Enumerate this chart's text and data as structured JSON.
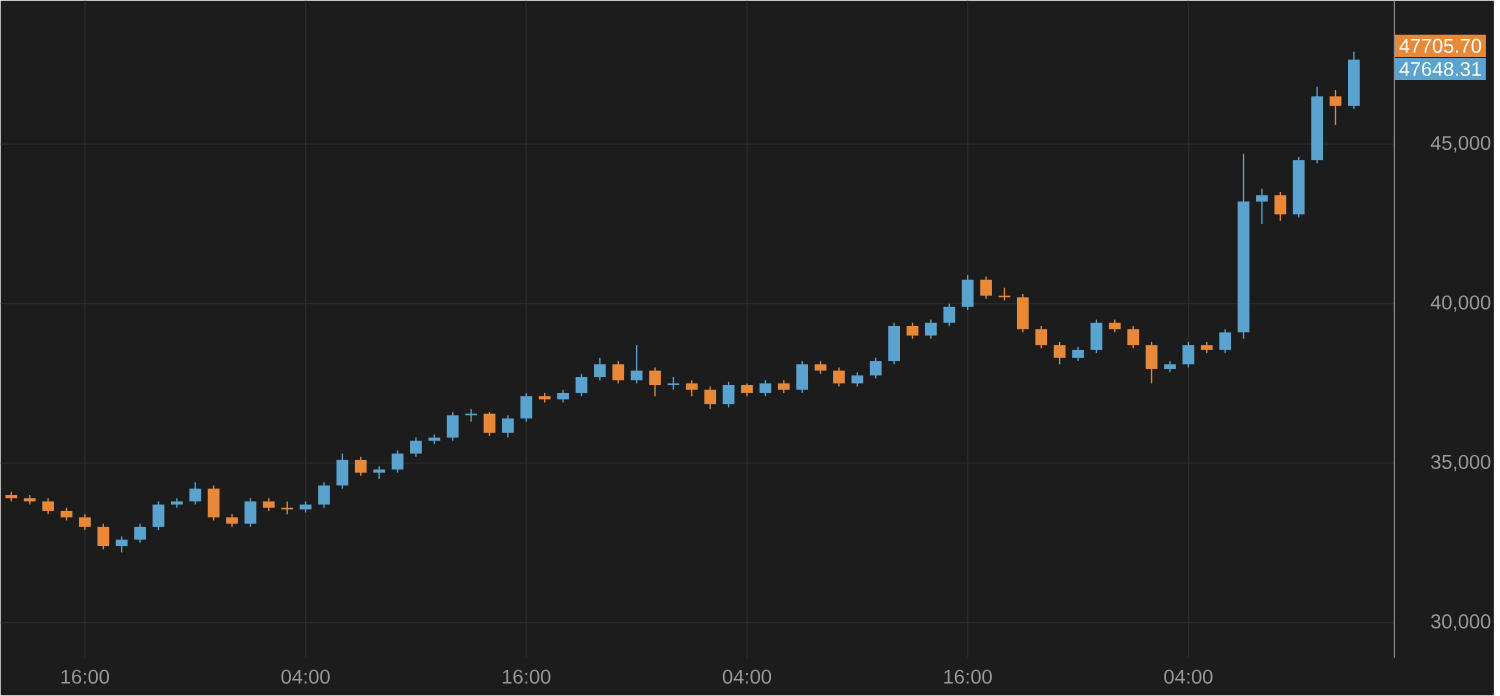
{
  "chart_data": {
    "type": "candlestick",
    "categories": [
      null,
      null,
      null,
      null,
      "16:00",
      null,
      null,
      null,
      null,
      null,
      null,
      null,
      null,
      null,
      null,
      null,
      "04:00",
      null,
      null,
      null,
      null,
      null,
      null,
      null,
      null,
      null,
      null,
      null,
      "16:00",
      null,
      null,
      null,
      null,
      null,
      null,
      null,
      null,
      null,
      null,
      null,
      "04:00",
      null,
      null,
      null,
      null,
      null,
      null,
      null,
      null,
      null,
      null,
      null,
      "16:00",
      null,
      null,
      null,
      null,
      null,
      null,
      null,
      null,
      null,
      null,
      null,
      "04:00",
      null,
      null,
      null,
      null,
      null,
      null,
      null,
      null,
      null
    ],
    "ohlc": [
      [
        34000,
        34100,
        33800,
        33900
      ],
      [
        33900,
        34000,
        33700,
        33800
      ],
      [
        33800,
        33900,
        33400,
        33500
      ],
      [
        33500,
        33600,
        33200,
        33300
      ],
      [
        33300,
        33400,
        32900,
        33000
      ],
      [
        33000,
        33100,
        32300,
        32400
      ],
      [
        32400,
        32700,
        32200,
        32600
      ],
      [
        32600,
        33100,
        32500,
        33000
      ],
      [
        33000,
        33800,
        32900,
        33700
      ],
      [
        33700,
        33900,
        33600,
        33800
      ],
      [
        33800,
        34400,
        33700,
        34200
      ],
      [
        34200,
        34300,
        33200,
        33300
      ],
      [
        33300,
        33400,
        33000,
        33100
      ],
      [
        33100,
        33900,
        33000,
        33800
      ],
      [
        33800,
        33900,
        33500,
        33600
      ],
      [
        33600,
        33800,
        33400,
        33550
      ],
      [
        33550,
        33800,
        33450,
        33700
      ],
      [
        33700,
        34400,
        33600,
        34300
      ],
      [
        34300,
        35300,
        34200,
        35100
      ],
      [
        35100,
        35200,
        34600,
        34700
      ],
      [
        34700,
        34900,
        34500,
        34800
      ],
      [
        34800,
        35400,
        34700,
        35300
      ],
      [
        35300,
        35800,
        35200,
        35700
      ],
      [
        35700,
        35900,
        35600,
        35800
      ],
      [
        35800,
        36600,
        35700,
        36500
      ],
      [
        36500,
        36700,
        36300,
        36550
      ],
      [
        36550,
        36600,
        35850,
        35950
      ],
      [
        35950,
        36500,
        35800,
        36400
      ],
      [
        36400,
        37200,
        36300,
        37100
      ],
      [
        37100,
        37200,
        36900,
        37000
      ],
      [
        37000,
        37300,
        36900,
        37200
      ],
      [
        37200,
        37800,
        37100,
        37700
      ],
      [
        37700,
        38300,
        37600,
        38100
      ],
      [
        38100,
        38200,
        37500,
        37600
      ],
      [
        37600,
        38700,
        37500,
        37900
      ],
      [
        37900,
        38000,
        37100,
        37450
      ],
      [
        37450,
        37700,
        37300,
        37500
      ],
      [
        37500,
        37600,
        37100,
        37300
      ],
      [
        37300,
        37400,
        36700,
        36850
      ],
      [
        36850,
        37550,
        36750,
        37450
      ],
      [
        37450,
        37500,
        37100,
        37200
      ],
      [
        37200,
        37600,
        37100,
        37500
      ],
      [
        37500,
        37600,
        37200,
        37300
      ],
      [
        37300,
        38200,
        37200,
        38100
      ],
      [
        38100,
        38200,
        37800,
        37900
      ],
      [
        37900,
        38000,
        37400,
        37500
      ],
      [
        37500,
        37850,
        37400,
        37750
      ],
      [
        37750,
        38300,
        37650,
        38200
      ],
      [
        38200,
        39400,
        38100,
        39300
      ],
      [
        39300,
        39400,
        38900,
        39000
      ],
      [
        39000,
        39500,
        38900,
        39400
      ],
      [
        39400,
        40000,
        39300,
        39900
      ],
      [
        39900,
        40900,
        39800,
        40750
      ],
      [
        40750,
        40850,
        40150,
        40250
      ],
      [
        40250,
        40500,
        40100,
        40200
      ],
      [
        40200,
        40300,
        39100,
        39200
      ],
      [
        39200,
        39300,
        38600,
        38700
      ],
      [
        38700,
        38800,
        38100,
        38300
      ],
      [
        38300,
        38650,
        38200,
        38550
      ],
      [
        38550,
        39500,
        38450,
        39400
      ],
      [
        39400,
        39500,
        39100,
        39200
      ],
      [
        39200,
        39300,
        38600,
        38700
      ],
      [
        38700,
        38800,
        37500,
        37950
      ],
      [
        37950,
        38200,
        37850,
        38100
      ],
      [
        38100,
        38800,
        38000,
        38700
      ],
      [
        38700,
        38800,
        38450,
        38550
      ],
      [
        38550,
        39200,
        38450,
        39100
      ],
      [
        39100,
        44700,
        38900,
        43200
      ],
      [
        43200,
        43600,
        42500,
        43400
      ],
      [
        43400,
        43500,
        42600,
        42800
      ],
      [
        42800,
        44600,
        42700,
        44500
      ],
      [
        44500,
        46800,
        44400,
        46500
      ],
      [
        46500,
        46700,
        45600,
        46200
      ],
      [
        46200,
        47900,
        46100,
        47650
      ]
    ],
    "colors": [
      "#e8893a",
      "#e8893a",
      "#e8893a",
      "#e8893a",
      "#e8893a",
      "#e8893a",
      "#5ba3cf",
      "#5ba3cf",
      "#5ba3cf",
      "#5ba3cf",
      "#5ba3cf",
      "#e8893a",
      "#e8893a",
      "#5ba3cf",
      "#e8893a",
      "#e8893a",
      "#5ba3cf",
      "#5ba3cf",
      "#5ba3cf",
      "#e8893a",
      "#5ba3cf",
      "#5ba3cf",
      "#5ba3cf",
      "#5ba3cf",
      "#5ba3cf",
      "#5ba3cf",
      "#e8893a",
      "#5ba3cf",
      "#5ba3cf",
      "#e8893a",
      "#5ba3cf",
      "#5ba3cf",
      "#5ba3cf",
      "#e8893a",
      "#5ba3cf",
      "#e8893a",
      "#5ba3cf",
      "#e8893a",
      "#e8893a",
      "#5ba3cf",
      "#e8893a",
      "#5ba3cf",
      "#e8893a",
      "#5ba3cf",
      "#e8893a",
      "#e8893a",
      "#5ba3cf",
      "#5ba3cf",
      "#5ba3cf",
      "#e8893a",
      "#5ba3cf",
      "#5ba3cf",
      "#5ba3cf",
      "#e8893a",
      "#e8893a",
      "#e8893a",
      "#e8893a",
      "#e8893a",
      "#5ba3cf",
      "#5ba3cf",
      "#e8893a",
      "#e8893a",
      "#e8893a",
      "#5ba3cf",
      "#5ba3cf",
      "#e8893a",
      "#5ba3cf",
      "#5ba3cf",
      "#5ba3cf",
      "#e8893a",
      "#5ba3cf",
      "#5ba3cf",
      "#e8893a",
      "#5ba3cf"
    ],
    "ylim": [
      28900,
      49500
    ],
    "yticks": [
      {
        "value": 30000,
        "label": "30,000"
      },
      {
        "value": 35000,
        "label": "35,000"
      },
      {
        "value": 40000,
        "label": "40,000"
      },
      {
        "value": 45000,
        "label": "45,000"
      }
    ],
    "grid": true,
    "annotations": [
      "47705.70",
      "47648.31"
    ]
  }
}
